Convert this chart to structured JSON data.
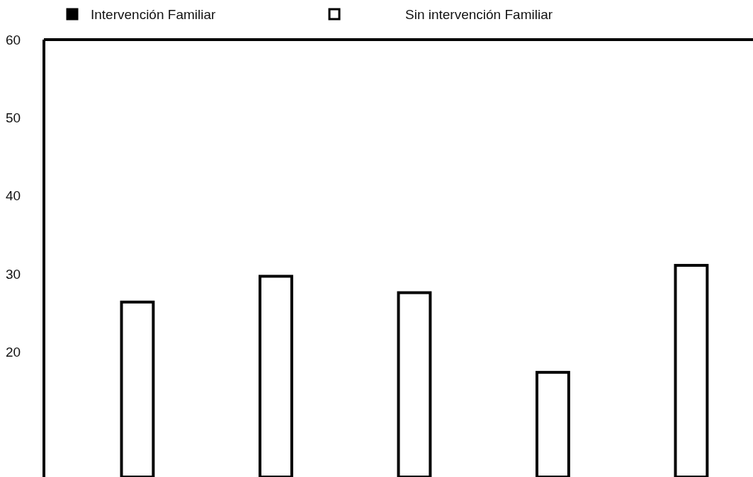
{
  "chart_data": {
    "type": "bar",
    "categories": [
      null,
      null,
      null,
      null,
      null
    ],
    "series": [
      {
        "name": "Intervención Familiar",
        "color": "#000000",
        "values": [
          null,
          null,
          null,
          null,
          null
        ]
      },
      {
        "name": "Sin intervención Familiar",
        "color": "#ffffff",
        "values": [
          26.4,
          29.7,
          27.6,
          17.4,
          31.1
        ]
      }
    ],
    "ylim": [
      4,
      60
    ],
    "yticks": [
      20,
      30,
      40,
      50,
      60
    ],
    "grid": false,
    "legend": "top",
    "tick_labels": "y"
  }
}
